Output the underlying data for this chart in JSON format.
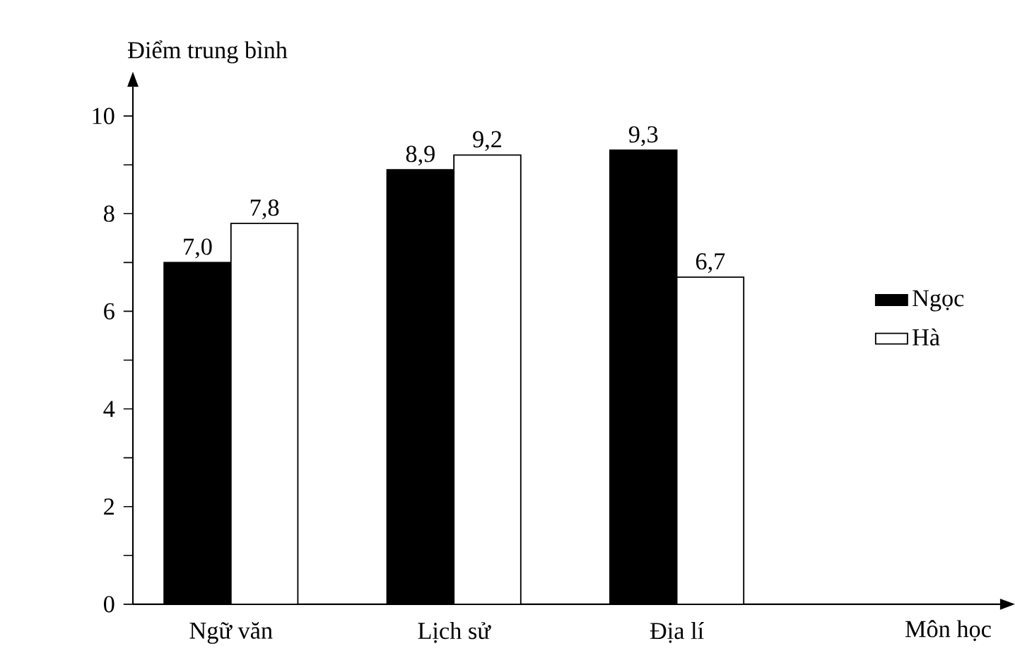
{
  "chart_data": {
    "type": "bar",
    "xlabel": "Môn học",
    "ylabel": "Điểm trung bình",
    "categories": [
      "Ngữ văn",
      "Lịch sử",
      "Địa lí"
    ],
    "series": [
      {
        "name": "Ngọc",
        "color": "#000000",
        "values": [
          7.0,
          8.9,
          9.3
        ],
        "value_labels": [
          "7,0",
          "8,9",
          "9,3"
        ]
      },
      {
        "name": "Hà",
        "color": "#ffffff",
        "values": [
          7.8,
          9.2,
          6.7
        ],
        "value_labels": [
          "7,8",
          "9,2",
          "6,7"
        ]
      }
    ],
    "ylim": [
      0,
      10.6
    ],
    "yticks": [
      0,
      {
        "value": 1,
        "label": null
      },
      2,
      {
        "value": 3,
        "label": null
      },
      4,
      {
        "value": 5,
        "label": null
      },
      6,
      {
        "value": 7,
        "label": null
      },
      8,
      {
        "value": 9,
        "label": null
      },
      10
    ],
    "legend": "right"
  }
}
